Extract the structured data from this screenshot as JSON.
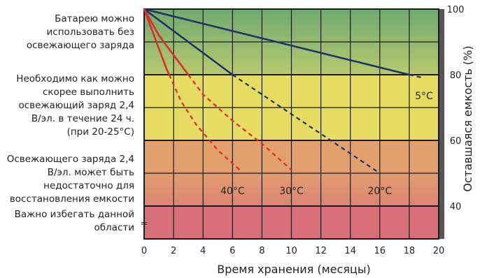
{
  "zones": [
    {
      "id": "ok",
      "lines": [
        "Батарею можно",
        "использовать без",
        "освежающего заряда"
      ]
    },
    {
      "id": "recharge",
      "lines": [
        "Необходимо как можно",
        "скорее выполнить",
        "освежающий заряд 2,4",
        "В/эл. в течение 24 ч.",
        "(при 20-25°C)"
      ]
    },
    {
      "id": "insufficient",
      "lines": [
        "Освежающего заряда 2,4",
        "В/эл. может быть",
        "недостаточно для",
        "восстановления емкости"
      ]
    },
    {
      "id": "avoid",
      "lines": [
        "Важно избегать данной",
        "области"
      ]
    }
  ],
  "colors": {
    "green_top": "#6fa96f",
    "green_bottom": "#b7c96f",
    "yellow": "#e6dc62",
    "orange": "#e2a06e",
    "red": "#d96f78",
    "grid": "#1a1a1a",
    "frame": "#555555",
    "curve_blue": "#1f3366",
    "curve_red": "#e22a2a"
  },
  "break_mark": "≈",
  "chart_data": {
    "type": "line",
    "xlabel": "Время хранения (месяцы)",
    "ylabel": "Оставшаяся емкость (%)",
    "xlim": [
      0,
      20
    ],
    "ylim": [
      30,
      100
    ],
    "x_ticks": [
      0,
      2,
      4,
      6,
      8,
      10,
      12,
      14,
      16,
      18,
      20
    ],
    "y_ticks": [
      100,
      80,
      60,
      40
    ],
    "zones_y": [
      [
        80,
        100,
        "green"
      ],
      [
        60,
        80,
        "yellow"
      ],
      [
        40,
        60,
        "orange"
      ],
      [
        30,
        40,
        "red"
      ]
    ],
    "series": [
      {
        "name": "5°C",
        "color": "blue",
        "solid": [
          [
            0,
            100
          ],
          [
            18,
            80
          ]
        ],
        "dashed": [
          [
            18,
            80
          ],
          [
            19,
            79
          ]
        ],
        "label_at": [
          19,
          76
        ]
      },
      {
        "name": "20°C",
        "color": "blue",
        "solid": [
          [
            0,
            100
          ],
          [
            6,
            80
          ]
        ],
        "dashed": [
          [
            6,
            80
          ],
          [
            16,
            50
          ]
        ],
        "label_at": [
          16,
          47
        ]
      },
      {
        "name": "30°C",
        "color": "red",
        "solid": [
          [
            0,
            100
          ],
          [
            1,
            92
          ],
          [
            2,
            86
          ],
          [
            3,
            80
          ]
        ],
        "dashed": [
          [
            3,
            80
          ],
          [
            4,
            74
          ],
          [
            6,
            66
          ],
          [
            8,
            59
          ],
          [
            10,
            51
          ]
        ],
        "label_at": [
          10,
          47
        ]
      },
      {
        "name": "40°C",
        "color": "red",
        "solid": [
          [
            0,
            100
          ],
          [
            0.5,
            94
          ],
          [
            1,
            88
          ],
          [
            1.5,
            82
          ],
          [
            1.7,
            80
          ]
        ],
        "dashed": [
          [
            1.7,
            80
          ],
          [
            2.5,
            72
          ],
          [
            3.5,
            65
          ],
          [
            5,
            57
          ],
          [
            6.5,
            51
          ]
        ],
        "label_at": [
          6,
          47
        ]
      }
    ]
  }
}
